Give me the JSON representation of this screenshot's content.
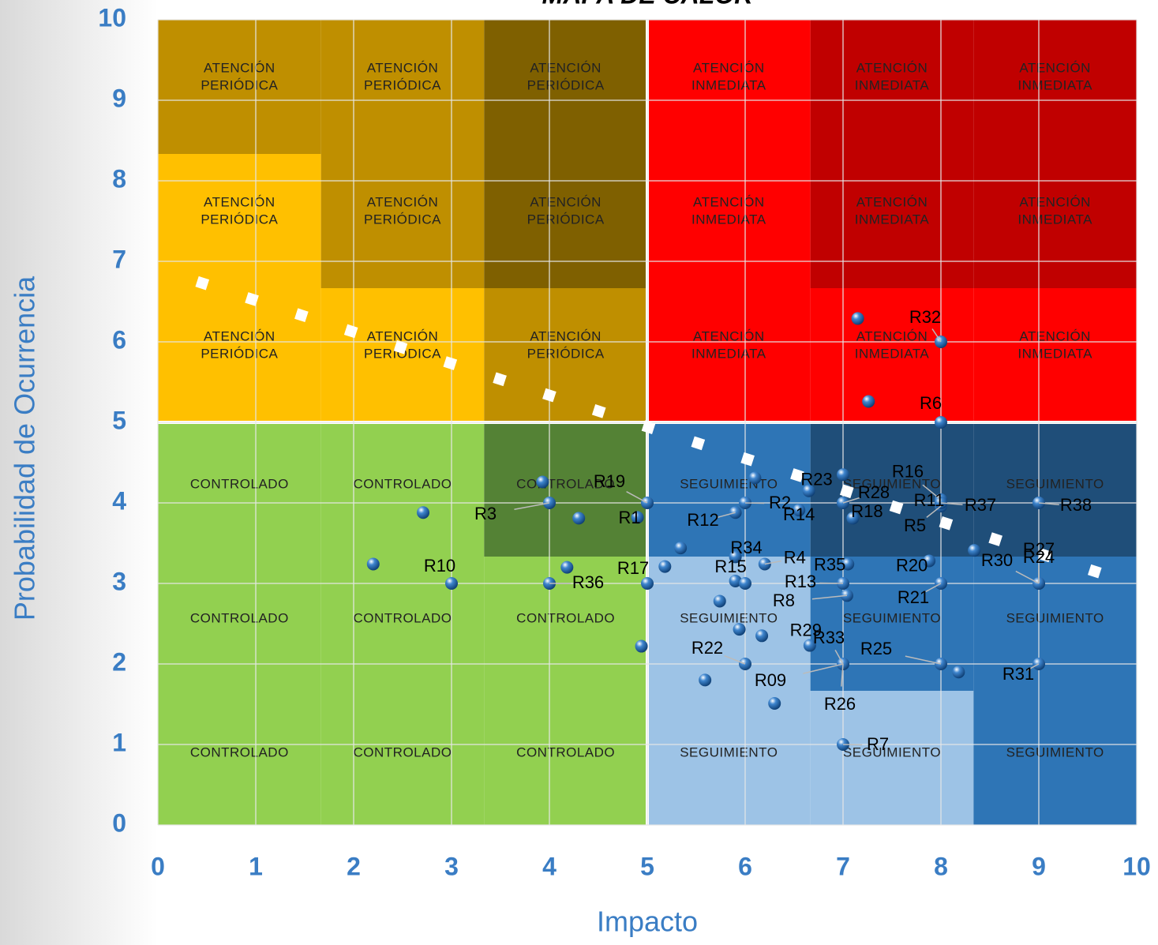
{
  "chart_data": {
    "type": "scatter",
    "title": "MAPA DE CALOR",
    "x_label": "Impacto",
    "y_label": "Probabilidad de Ocurrencia",
    "xlim": [
      0,
      10
    ],
    "ylim": [
      0,
      10
    ],
    "xticks": [
      0,
      1,
      2,
      3,
      4,
      5,
      6,
      7,
      8,
      9,
      10
    ],
    "yticks": [
      0,
      1,
      2,
      3,
      4,
      5,
      6,
      7,
      8,
      9,
      10
    ],
    "grid": true,
    "point_color": "#3f86cf",
    "threshold": {
      "x": [
        0.4,
        9.7
      ],
      "y": [
        6.75,
        3.1
      ]
    },
    "zones": [
      [
        {
          "color": "#bf8f00",
          "label": [
            "ATENCIÓN",
            "PERIÓDICA"
          ]
        },
        {
          "color": "#bf8f00",
          "label": [
            "ATENCIÓN",
            "PERIÓDICA"
          ]
        },
        {
          "color": "#7f6000",
          "label": [
            "ATENCIÓN",
            "PERIÓDICA"
          ]
        },
        {
          "color": "#ff0000",
          "label": [
            "ATENCIÓN",
            "INMEDIATA"
          ]
        },
        {
          "color": "#c00000",
          "label": [
            "ATENCIÓN",
            "INMEDIATA"
          ]
        },
        {
          "color": "#c00000",
          "label": [
            "ATENCIÓN",
            "INMEDIATA"
          ]
        }
      ],
      [
        {
          "color": "#ffc000",
          "label": [
            "ATENCIÓN",
            "PERIÓDICA"
          ]
        },
        {
          "color": "#bf8f00",
          "label": [
            "ATENCIÓN",
            "PERIÓDICA"
          ]
        },
        {
          "color": "#7f6000",
          "label": [
            "ATENCIÓN",
            "PERIÓDICA"
          ]
        },
        {
          "color": "#ff0000",
          "label": [
            "ATENCIÓN",
            "INMEDIATA"
          ]
        },
        {
          "color": "#c00000",
          "label": [
            "ATENCIÓN",
            "INMEDIATA"
          ]
        },
        {
          "color": "#c00000",
          "label": [
            "ATENCIÓN",
            "INMEDIATA"
          ]
        }
      ],
      [
        {
          "color": "#ffc000",
          "label": [
            "ATENCIÓN",
            "PERIÓDICA"
          ]
        },
        {
          "color": "#ffc000",
          "label": [
            "ATENCIÓN",
            "PERIÓDICA"
          ]
        },
        {
          "color": "#bf8f00",
          "label": [
            "ATENCIÓN",
            "PERIÓDICA"
          ]
        },
        {
          "color": "#ff0000",
          "label": [
            "ATENCIÓN",
            "INMEDIATA"
          ]
        },
        {
          "color": "#ff0000",
          "label": [
            "ATENCIÓN",
            "INMEDIATA"
          ]
        },
        {
          "color": "#ff0000",
          "label": [
            "ATENCIÓN",
            "INMEDIATA"
          ]
        }
      ],
      [
        {
          "color": "#92d050",
          "label": [
            "CONTROLADO"
          ]
        },
        {
          "color": "#92d050",
          "label": [
            "CONTROLADO"
          ]
        },
        {
          "color": "#548235",
          "label": [
            "CONTROLADO"
          ]
        },
        {
          "color": "#2e75b6",
          "label": [
            "SEGUIMIENTO"
          ]
        },
        {
          "color": "#1f4e79",
          "label": [
            "SEGUIMIENTO"
          ]
        },
        {
          "color": "#1f4e79",
          "label": [
            "SEGUIMIENTO"
          ]
        }
      ],
      [
        {
          "color": "#92d050",
          "label": [
            "CONTROLADO"
          ]
        },
        {
          "color": "#92d050",
          "label": [
            "CONTROLADO"
          ]
        },
        {
          "color": "#92d050",
          "label": [
            "CONTROLADO"
          ]
        },
        {
          "color": "#9dc3e6",
          "label": [
            "SEGUIMIENTO"
          ]
        },
        {
          "color": "#2e75b6",
          "label": [
            "SEGUIMIENTO"
          ]
        },
        {
          "color": "#2e75b6",
          "label": [
            "SEGUIMIENTO"
          ]
        }
      ],
      [
        {
          "color": "#92d050",
          "label": [
            "CONTROLADO"
          ]
        },
        {
          "color": "#92d050",
          "label": [
            "CONTROLADO"
          ]
        },
        {
          "color": "#92d050",
          "label": [
            "CONTROLADO"
          ]
        },
        {
          "color": "#9dc3e6",
          "label": [
            "SEGUIMIENTO"
          ]
        },
        {
          "color": "#9dc3e6",
          "label": [
            "SEGUIMIENTO"
          ]
        },
        {
          "color": "#2e75b6",
          "label": [
            "SEGUIMIENTO"
          ]
        }
      ]
    ],
    "x": [
      7.15,
      8,
      7.26,
      8,
      3.93,
      4,
      2.71,
      4.3,
      5,
      4.9,
      6.1,
      6,
      5.9,
      6.55,
      6.65,
      7,
      7,
      7.1,
      8,
      8,
      8,
      8,
      9,
      5.34,
      5.9,
      6.2,
      7.05,
      7.88,
      8.34,
      9,
      9,
      9,
      2.2,
      3,
      4.18,
      4,
      5.18,
      5,
      5.9,
      6,
      7,
      7.04,
      8,
      5.74,
      5.94,
      6.17,
      6.66,
      4.94,
      6,
      7,
      7,
      7,
      8,
      8.18,
      9,
      5.59,
      6.3,
      7
    ],
    "y": [
      6.29,
      6,
      5.26,
      5,
      4.26,
      4,
      3.88,
      3.81,
      4,
      3.82,
      4.31,
      4,
      3.88,
      3.91,
      4.15,
      4.35,
      4,
      3.81,
      4.04,
      4,
      3.96,
      4,
      4,
      3.44,
      3.33,
      3.24,
      3.24,
      3.28,
      3.41,
      3,
      3,
      3,
      3.24,
      3,
      3.2,
      3,
      3.21,
      3,
      3.03,
      3,
      3,
      2.85,
      3,
      2.78,
      2.43,
      2.35,
      2.23,
      2.22,
      2,
      2,
      2,
      2,
      2,
      1.9,
      2,
      1.8,
      1.51,
      1
    ],
    "labels": [
      null,
      "R32",
      null,
      "R6",
      null,
      "R3",
      null,
      null,
      "R19",
      "R1",
      null,
      "R2",
      "R12",
      "R14",
      "R23",
      null,
      "R28",
      "R18",
      "R16",
      "R11",
      "R5",
      "R37",
      "R38",
      null,
      "R34",
      "R4",
      "R35",
      "R20",
      null,
      "R30",
      "R27",
      "R24",
      null,
      "R10",
      null,
      "R36",
      null,
      "R17",
      "R15",
      null,
      "R13",
      "R8",
      "R21",
      null,
      null,
      null,
      "R29",
      null,
      "R22",
      "R33",
      "R09",
      "R26",
      "R25",
      null,
      "R31",
      null,
      null,
      "R7"
    ]
  }
}
